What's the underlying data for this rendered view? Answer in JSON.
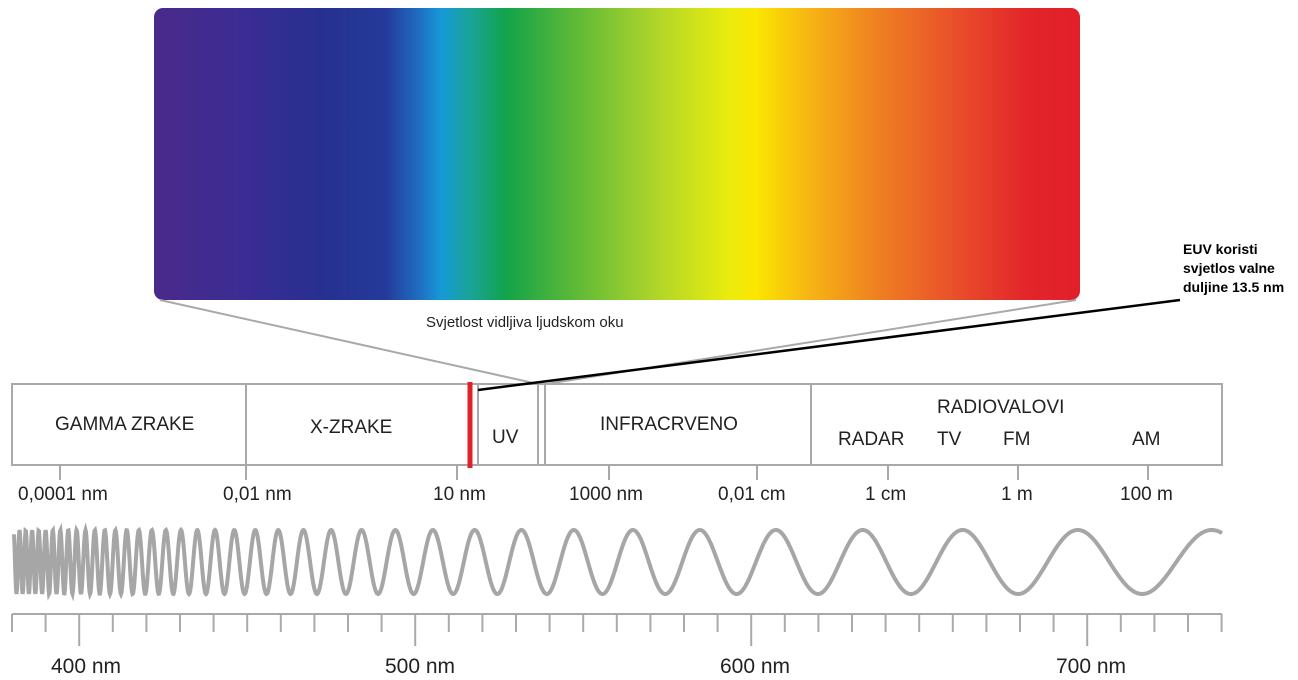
{
  "visible_light_label": "Svjetlost vidljiva ljudskom oku",
  "euv_note": [
    "EUV koristi",
    "svjetlos valne",
    "duljine 13.5 nm"
  ],
  "bands": {
    "gamma": "GAMMA ZRAKE",
    "xray": "X-ZRAKE",
    "uv": "UV",
    "infrared": "INFRACRVENO",
    "radio": "RADIOVALOVI",
    "radio_sub": [
      "RADAR",
      "TV",
      "FM",
      "AM"
    ]
  },
  "wavelength_scale": [
    "0,0001 nm",
    "0,01 nm",
    "10 nm",
    "1000 nm",
    "0,01 cm",
    "1 cm",
    "1 m",
    "100 m"
  ],
  "visible_scale": [
    "400 nm",
    "500 nm",
    "600 nm",
    "700 nm"
  ],
  "colors": {
    "marker": "#e0202a",
    "outline": "#a9a9a9",
    "wave": "#a6a6a6",
    "euv_line": "#000000"
  }
}
